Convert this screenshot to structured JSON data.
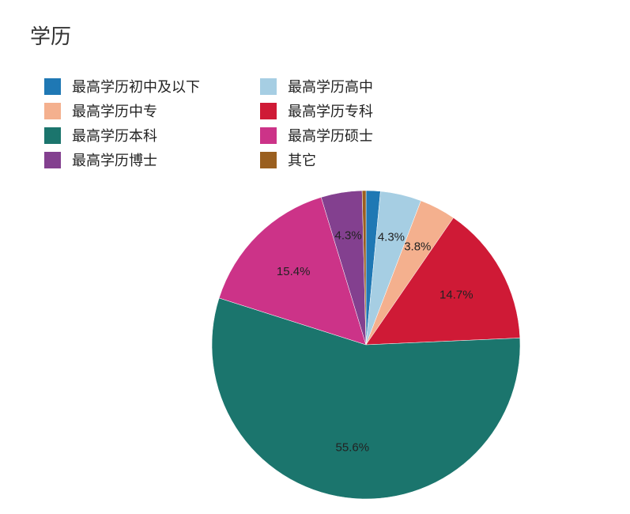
{
  "chart_data": {
    "type": "pie",
    "title": "学历",
    "legend_position": "top-left",
    "slices": [
      {
        "name": "最高学历初中及以下",
        "value": 1.5,
        "color": "#1f78b4",
        "label": ""
      },
      {
        "name": "最高学历高中",
        "value": 4.3,
        "color": "#a6cee3",
        "label": "4.3%"
      },
      {
        "name": "最高学历中专",
        "value": 3.8,
        "color": "#f4b08e",
        "label": "3.8%"
      },
      {
        "name": "最高学历专科",
        "value": 14.7,
        "color": "#cf1a36",
        "label": "14.7%"
      },
      {
        "name": "最高学历本科",
        "value": 55.6,
        "color": "#1b756d",
        "label": "55.6%"
      },
      {
        "name": "最高学历硕士",
        "value": 15.4,
        "color": "#cc3388",
        "label": "15.4%"
      },
      {
        "name": "最高学历博士",
        "value": 4.3,
        "color": "#83408f",
        "label": "4.3%"
      },
      {
        "name": "其它",
        "value": 0.4,
        "color": "#9a5f1f",
        "label": ""
      }
    ]
  }
}
